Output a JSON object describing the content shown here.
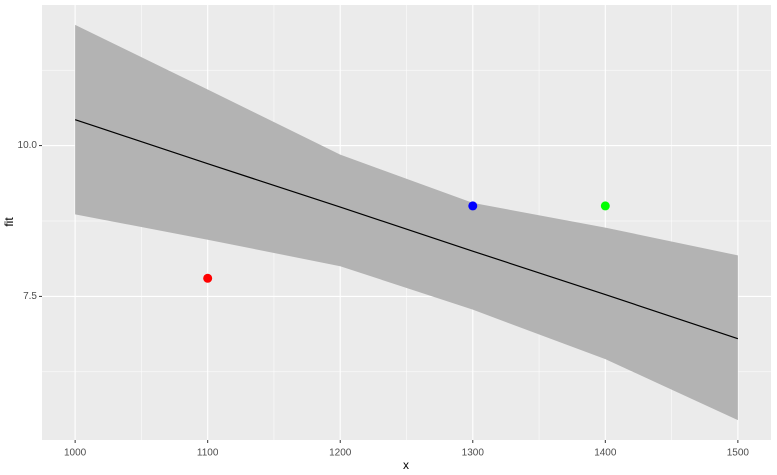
{
  "chart_data": {
    "type": "scatter",
    "xlabel": "x",
    "ylabel": "fit",
    "xlim": [
      975,
      1525
    ],
    "ylim": [
      5.12,
      12.33
    ],
    "xticks": [
      1000,
      1100,
      1200,
      1300,
      1400,
      1500
    ],
    "x_minor_ticks": [
      1050,
      1150,
      1250,
      1350,
      1450
    ],
    "yticks": [
      7.5,
      {
        "value": 10,
        "label": "10.0"
      }
    ],
    "y_minor_ticks": [
      6.25,
      8.75,
      11.25
    ],
    "grid": true,
    "ribbon": {
      "color": "#b3b3b3",
      "x": [
        1000,
        1100,
        1200,
        1300,
        1400,
        1500
      ],
      "upper": [
        12.0,
        10.93,
        9.85,
        9.05,
        8.64,
        8.18
      ],
      "lower": [
        8.86,
        8.44,
        8.0,
        7.28,
        6.46,
        5.45
      ]
    },
    "line": {
      "color": "#000000",
      "x": [
        1000,
        1100,
        1200,
        1300,
        1400,
        1500
      ],
      "values": [
        10.43,
        9.7,
        8.98,
        8.25,
        7.53,
        6.8
      ]
    },
    "points": {
      "x": [
        1100,
        1300,
        1400
      ],
      "values": [
        7.8,
        9.0,
        9.0
      ],
      "colors": [
        "#ff0000",
        "#0000ff",
        "#00ff00"
      ]
    }
  }
}
